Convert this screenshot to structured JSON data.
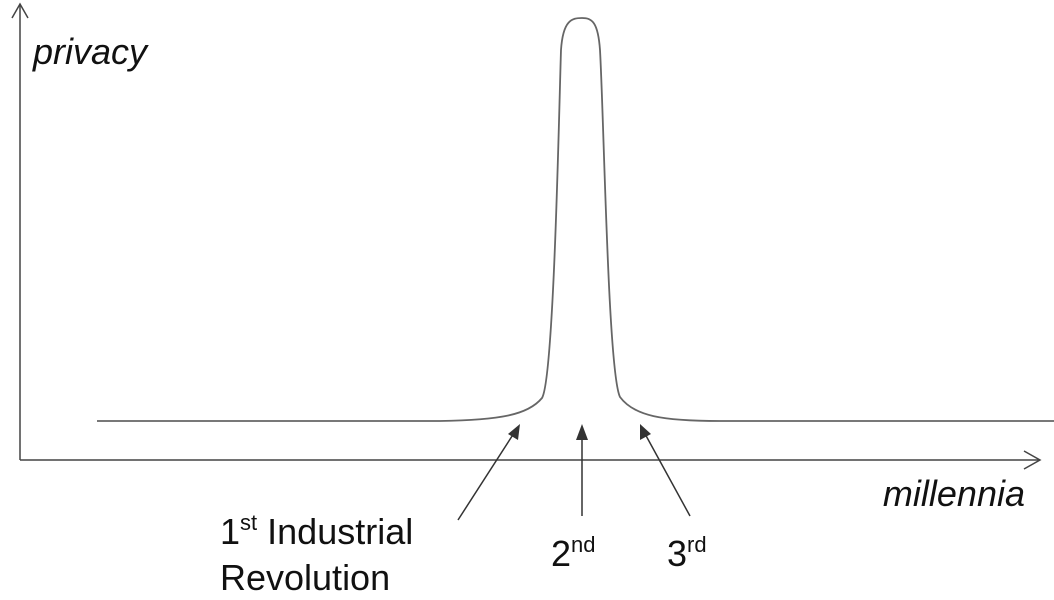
{
  "axes": {
    "y_label": "privacy",
    "x_label": "millennia"
  },
  "annotations": [
    {
      "number": "1",
      "suffix": "st",
      "lines": [
        "Industrial",
        "Revolution"
      ]
    },
    {
      "number": "2",
      "suffix": "nd"
    },
    {
      "number": "3",
      "suffix": "rd"
    }
  ]
}
